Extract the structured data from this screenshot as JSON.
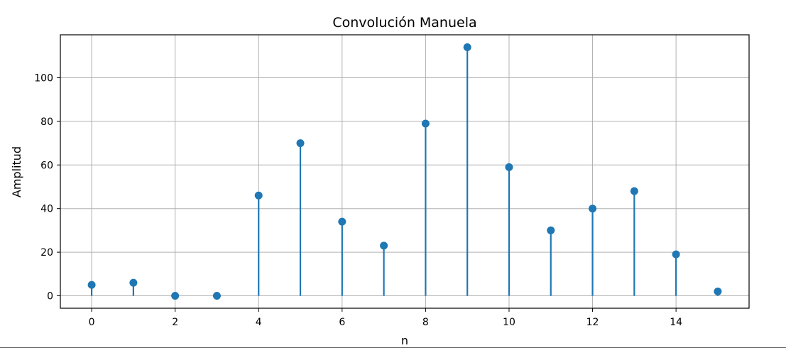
{
  "chart_data": {
    "type": "stem",
    "title": "Convolución Manuela",
    "xlabel": "n",
    "ylabel": "Amplitud",
    "x": [
      0,
      1,
      2,
      3,
      4,
      5,
      6,
      7,
      8,
      9,
      10,
      11,
      12,
      13,
      14,
      15
    ],
    "values": [
      5,
      6,
      0,
      0,
      46,
      70,
      34,
      23,
      79,
      114,
      59,
      30,
      40,
      48,
      19,
      2
    ],
    "xlim": [
      -0.75,
      15.75
    ],
    "ylim": [
      -5.7,
      119.7
    ],
    "xticks": [
      "0",
      "2",
      "4",
      "6",
      "8",
      "10",
      "12",
      "14"
    ],
    "yticks": [
      "0",
      "20",
      "40",
      "60",
      "80",
      "100"
    ],
    "grid": true,
    "color": "#1f77b4"
  }
}
